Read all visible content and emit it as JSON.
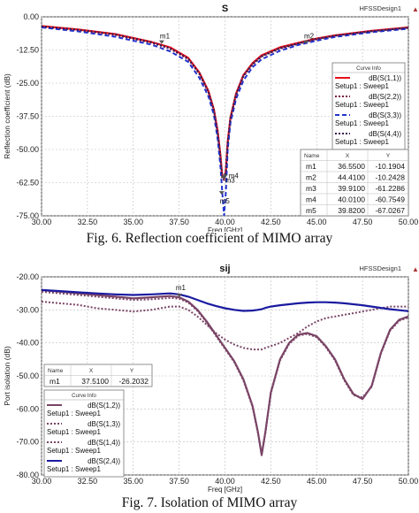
{
  "top_cutoff_text": "sign",
  "charts": [
    {
      "title": "S",
      "app_label": "HFSSDesign1",
      "ylabel": "Reflection coefficient (dB)",
      "xlabel": "Freq [GHz]",
      "caption": "Fig. 6. Reflection coefficient of MIMO array",
      "legend_title": "Curve Info",
      "markers": [
        {
          "name": "m1",
          "x": 36.55,
          "y": -10.1904
        },
        {
          "name": "m2",
          "x": 44.41,
          "y": -10.2428
        },
        {
          "name": "m3",
          "x": 39.91,
          "y": -61.2286
        },
        {
          "name": "m4",
          "x": 40.01,
          "y": -60.7549
        },
        {
          "name": "m5",
          "x": 39.82,
          "y": -67.0267
        }
      ]
    },
    {
      "title": "sij",
      "app_label": "HFSSDesign1",
      "ylabel": "Port isolation (dB)",
      "xlabel": "Freq [GHz]",
      "caption": "Fig. 7. Isolation of MIMO array",
      "legend_title": "Curve Info",
      "markers": [
        {
          "name": "m1",
          "x": 37.51,
          "y": -26.2032
        }
      ]
    }
  ],
  "marker_table_headers": [
    "Name",
    "X",
    "Y"
  ],
  "chart_data": [
    {
      "type": "line",
      "title": "S",
      "xlabel": "Freq [GHz]",
      "ylabel": "Reflection coefficient (dB)",
      "xlim": [
        30,
        50
      ],
      "ylim": [
        -75,
        0
      ],
      "x_ticks": [
        "30.00",
        "32.50",
        "35.00",
        "37.50",
        "40.00",
        "42.50",
        "45.00",
        "47.50",
        "50.00"
      ],
      "y_ticks": [
        "0.00",
        "-12.50",
        "-25.00",
        "-37.50",
        "-50.00",
        "-62.50",
        "-75.00"
      ],
      "grid": true,
      "legend_position": "right",
      "x": [
        30,
        32,
        34,
        36,
        37,
        38,
        38.6,
        39.1,
        39.4,
        39.6,
        39.75,
        39.85,
        39.95,
        40.05,
        40.15,
        40.3,
        40.6,
        41,
        41.5,
        42,
        43,
        44,
        45,
        46,
        48,
        50
      ],
      "series": [
        {
          "name": "dB(S(1,1))",
          "sub": "Setup1 : Sweep1",
          "color": "#e8101a",
          "dash": "solid",
          "values": [
            -3.5,
            -4.8,
            -6.5,
            -9.5,
            -11.5,
            -15.5,
            -21,
            -28,
            -35,
            -43,
            -52,
            -60,
            -61,
            -58,
            -47,
            -38,
            -29,
            -22,
            -17.5,
            -14.5,
            -11.5,
            -9.8,
            -8.2,
            -7,
            -5.3,
            -4
          ]
        },
        {
          "name": "dB(S(2,2))",
          "sub": "Setup1 : Sweep1",
          "color": "#7a1f3d",
          "dash": "dot",
          "values": [
            -3.8,
            -5,
            -6.8,
            -9.8,
            -12,
            -16,
            -21.5,
            -28.5,
            -35.5,
            -44,
            -53,
            -61,
            -61.5,
            -59,
            -48,
            -38.5,
            -29.5,
            -22.5,
            -18,
            -15,
            -12,
            -10.2,
            -8.5,
            -7.2,
            -5.5,
            -4.2
          ]
        },
        {
          "name": "dB(S(3,3))",
          "sub": "Setup1 : Sweep1",
          "color": "#2233cc",
          "dash": "dash",
          "values": [
            -4,
            -5.5,
            -7.5,
            -10.5,
            -13,
            -17,
            -23,
            -30,
            -37,
            -46,
            -56,
            -66,
            -75,
            -66,
            -50,
            -40,
            -31,
            -24,
            -19,
            -16,
            -12.8,
            -10.6,
            -9,
            -7.6,
            -5.8,
            -4.5
          ]
        },
        {
          "name": "dB(S(4,4))",
          "sub": "Setup1 : Sweep1",
          "color": "#3a1a55",
          "dash": "dot",
          "values": [
            -3.6,
            -4.9,
            -6.6,
            -9.6,
            -11.8,
            -15.8,
            -21.2,
            -28.2,
            -35.2,
            -43.5,
            -52.5,
            -60.5,
            -60.8,
            -58.5,
            -47.5,
            -38.2,
            -29.2,
            -22.2,
            -17.8,
            -14.8,
            -11.8,
            -10,
            -8.3,
            -7.1,
            -5.4,
            -4.1
          ]
        }
      ]
    },
    {
      "type": "line",
      "title": "sij",
      "xlabel": "Freq [GHz]",
      "ylabel": "Port isolation (dB)",
      "xlim": [
        30,
        50
      ],
      "ylim": [
        -80,
        -20
      ],
      "x_ticks": [
        "30.00",
        "32.50",
        "35.00",
        "37.50",
        "40.00",
        "42.50",
        "45.00",
        "47.50",
        "50.00"
      ],
      "y_ticks": [
        "-20.00",
        "-30.00",
        "-40.00",
        "-50.00",
        "-60.00",
        "-70.00",
        "-80.00"
      ],
      "grid": true,
      "legend_position": "left",
      "x": [
        30,
        31,
        32,
        33,
        34,
        35,
        36,
        37,
        37.5,
        38,
        38.5,
        39,
        39.5,
        40,
        40.5,
        41,
        41.5,
        41.8,
        42,
        42.2,
        42.5,
        43,
        43.5,
        44,
        44.5,
        45,
        45.5,
        46,
        46.5,
        47,
        47.5,
        48,
        48.5,
        49,
        49.5,
        50
      ],
      "series": [
        {
          "name": "dB(S(1,2))",
          "sub": "Setup1 : Sweep1",
          "color": "#7a4466",
          "dash": "solid",
          "values": [
            -24,
            -24.5,
            -25,
            -25.5,
            -26,
            -26.5,
            -26.2,
            -25.8,
            -26.2,
            -27.5,
            -30,
            -33.5,
            -37.5,
            -41.5,
            -45.5,
            -51,
            -59,
            -67,
            -74,
            -67,
            -55,
            -45,
            -40,
            -37.5,
            -37,
            -38,
            -41,
            -45,
            -51,
            -55.5,
            -57,
            -53,
            -43,
            -36,
            -33,
            -32
          ]
        },
        {
          "name": "dB(S(1,3))",
          "sub": "Setup1 : Sweep1",
          "color": "#7a4466",
          "dash": "dot",
          "values": [
            -24.5,
            -25,
            -25.5,
            -26,
            -26.5,
            -27,
            -26.8,
            -26.4,
            -26.6,
            -27.8,
            -30.3,
            -33.8,
            -37.8,
            -41.8,
            -45.8,
            -51.3,
            -59.3,
            -67.3,
            -73.5,
            -67.3,
            -55.3,
            -45.3,
            -40.3,
            -37.8,
            -37.3,
            -38.3,
            -41.3,
            -45.3,
            -51.3,
            -55.8,
            -56.5,
            -53.3,
            -43.3,
            -36.3,
            -33.3,
            -32.3
          ]
        },
        {
          "name": "dB(S(1,4))",
          "sub": "Setup1 : Sweep1",
          "color": "#7a4466",
          "dash": "dot",
          "values": [
            -27.5,
            -28,
            -28.5,
            -29.5,
            -30,
            -30.5,
            -30,
            -29,
            -29,
            -30,
            -32,
            -34.5,
            -37,
            -39,
            -40.5,
            -41.5,
            -42,
            -42,
            -42,
            -41.5,
            -41,
            -40,
            -38.5,
            -37,
            -35,
            -33.5,
            -32.5,
            -32,
            -31.5,
            -31,
            -30.5,
            -30,
            -29.5,
            -29,
            -29,
            -29
          ]
        },
        {
          "name": "dB(S(2,4))",
          "sub": "Setup1 : Sweep1",
          "color": "#1a1aa0",
          "dash": "solid",
          "values": [
            -24,
            -24.3,
            -24.7,
            -25,
            -25.3,
            -25.5,
            -25.3,
            -25,
            -25.3,
            -26,
            -27,
            -28,
            -28.8,
            -29.5,
            -30,
            -30.3,
            -30.2,
            -30,
            -29.8,
            -29.4,
            -29,
            -28.6,
            -28.3,
            -28,
            -27.8,
            -27.7,
            -27.7,
            -27.8,
            -28,
            -28.3,
            -28.6,
            -29,
            -29.4,
            -29.8,
            -30.1,
            -30.4
          ]
        }
      ]
    }
  ]
}
